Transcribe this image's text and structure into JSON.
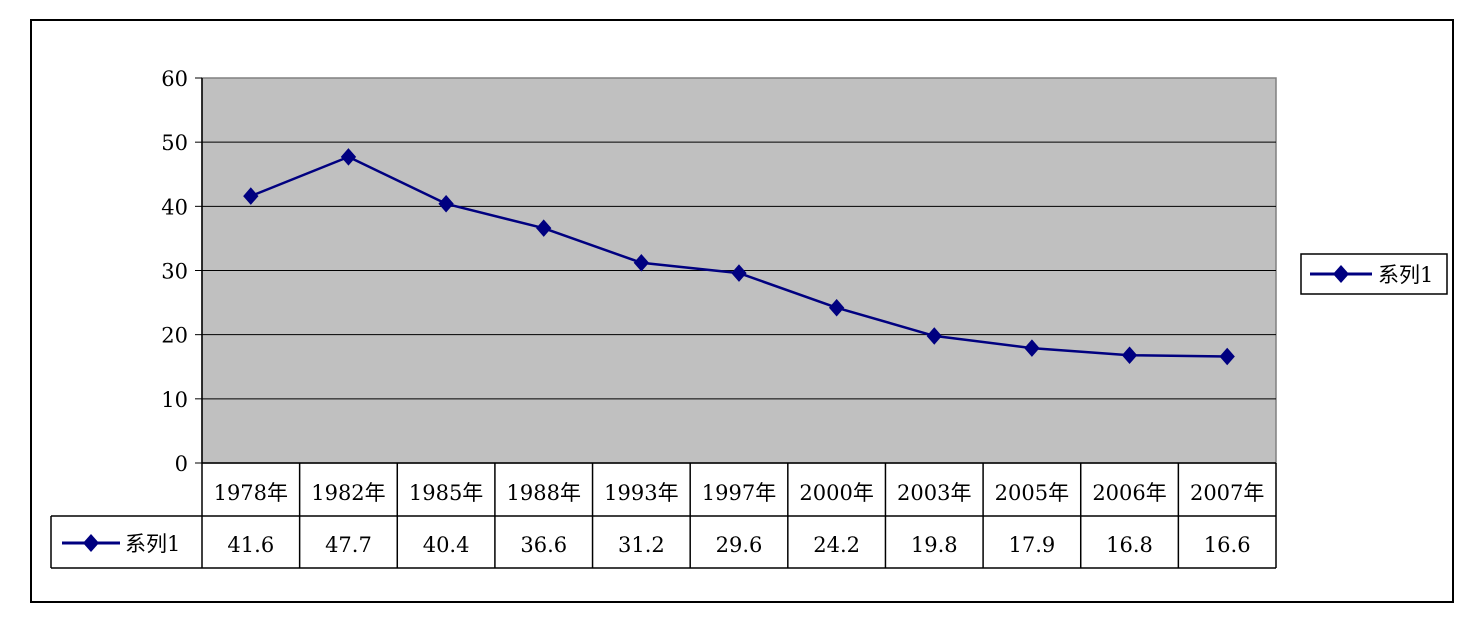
{
  "chart_data": {
    "type": "line",
    "title": "",
    "xlabel": "",
    "ylabel": "",
    "categories": [
      "1978年",
      "1982年",
      "1985年",
      "1988年",
      "1993年",
      "1997年",
      "2000年",
      "2003年",
      "2005年",
      "2006年",
      "2007年"
    ],
    "series": [
      {
        "name": "系列1",
        "values": [
          41.6,
          47.7,
          40.4,
          36.6,
          31.2,
          29.6,
          24.2,
          19.8,
          17.9,
          16.8,
          16.6
        ],
        "value_labels": [
          "41.6",
          "47.7",
          "40.4",
          "36.6",
          "31.2",
          "29.6",
          "24.2",
          "19.8",
          "17.9",
          "16.8",
          "16.6"
        ]
      }
    ],
    "ylim": [
      0,
      60
    ],
    "yticks": [
      "0",
      "10",
      "20",
      "30",
      "40",
      "50",
      "60"
    ],
    "grid": true,
    "legend": "right",
    "data_table": true,
    "colors": {
      "series": "#000080",
      "plot_background": "#c0c0c0",
      "gridline": "#000000",
      "border": "#000000"
    },
    "marker": "diamond"
  }
}
